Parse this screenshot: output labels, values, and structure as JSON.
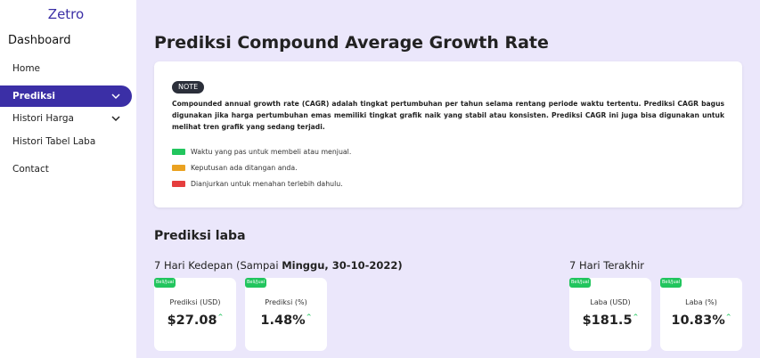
{
  "sidebar": {
    "brand": "Zetro",
    "section_title": "Dashboard",
    "items": [
      {
        "label": "Home"
      },
      {
        "label": "Prediksi"
      },
      {
        "label": "Histori Harga"
      },
      {
        "label": "Histori Tabel Laba"
      },
      {
        "label": "Contact"
      }
    ]
  },
  "main": {
    "title": "Prediksi Compound Average Growth Rate",
    "note": {
      "badge": "NOTE",
      "text": "Compounded annual growth rate (CAGR) adalah tingkat pertumbuhan per tahun selama rentang periode waktu tertentu. Prediksi CAGR bagus digunakan jika harga pertumbuhan emas memiliki tingkat grafik naik yang stabil atau konsisten. Prediksi CAGR ini juga bisa digunakan untuk melihat tren grafik yang sedang terjadi.",
      "legend": [
        {
          "color": "#22c55e",
          "text": "Waktu yang pas untuk membeli atau menjual."
        },
        {
          "color": "#eaa221",
          "text": "Keputusan ada ditangan anda."
        },
        {
          "color": "#e53e3e",
          "text": "Dianjurkan untuk menahan terlebih dahulu."
        }
      ]
    },
    "section_title": "Prediksi laba",
    "forecast": {
      "heading_prefix": "7 Hari Kedepan (Sampai ",
      "heading_bold": "Minggu, 30-10-2022)",
      "cards": [
        {
          "pill": "Beli/Jual",
          "label": "Prediksi (USD)",
          "value": "$27.08"
        },
        {
          "pill": "Beli/Jual",
          "label": "Prediksi (%)",
          "value": "1.48%"
        }
      ]
    },
    "past": {
      "heading": "7 Hari Terakhir",
      "cards": [
        {
          "pill": "Beli/Jual",
          "label": "Laba (USD)",
          "value": "$181.5"
        },
        {
          "pill": "Beli/Jual",
          "label": "Laba (%)",
          "value": "10.83%"
        }
      ]
    },
    "trend_arrow": "^"
  },
  "colors": {
    "accent": "#3b2fa6",
    "background": "#ebe7fb",
    "up": "#22c55e"
  },
  "icons": {
    "chevron": "chevron-down-icon",
    "trend": "arrow-up-icon"
  }
}
